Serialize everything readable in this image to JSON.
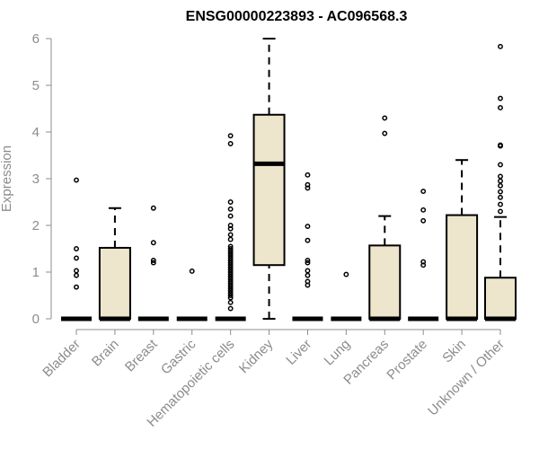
{
  "chart_data": {
    "type": "boxplot",
    "title": "ENSG00000223893 - AC096568.3",
    "xlabel": "",
    "ylabel": "Expression",
    "ylim": [
      0,
      6
    ],
    "yticks": [
      0,
      1,
      2,
      3,
      4,
      5,
      6
    ],
    "grid": false,
    "box_color": "#ede6cc",
    "line_color": "#000000",
    "axis_color": "#8c8c8c",
    "categories": [
      "Bladder",
      "Brain",
      "Breast",
      "Gastric",
      "Hematopoietic cells",
      "Kidney",
      "Liver",
      "Lung",
      "Pancreas",
      "Prostate",
      "Skin",
      "Unknown / Other"
    ],
    "boxes": [
      {
        "q1": 0,
        "median": 0,
        "q3": 0,
        "whisker_low": 0,
        "whisker_high": 0,
        "outliers": [
          0.68,
          0.93,
          1.03,
          1.3,
          1.5,
          2.97
        ]
      },
      {
        "q1": 0,
        "median": 0,
        "q3": 1.52,
        "whisker_low": 0,
        "whisker_high": 2.37,
        "outliers": []
      },
      {
        "q1": 0,
        "median": 0,
        "q3": 0,
        "whisker_low": 0,
        "whisker_high": 0,
        "outliers": [
          1.2,
          1.25,
          1.63,
          2.37
        ]
      },
      {
        "q1": 0,
        "median": 0,
        "q3": 0,
        "whisker_low": 0,
        "whisker_high": 0,
        "outliers": [
          1.02
        ]
      },
      {
        "q1": 0,
        "median": 0,
        "q3": 0,
        "whisker_low": 0,
        "whisker_high": 0,
        "outliers": [
          0.22,
          0.35,
          0.45,
          0.5,
          0.55,
          0.6,
          0.65,
          0.7,
          0.75,
          0.8,
          0.85,
          0.9,
          0.95,
          1.0,
          1.05,
          1.1,
          1.15,
          1.2,
          1.25,
          1.3,
          1.35,
          1.4,
          1.45,
          1.5,
          1.55,
          1.7,
          1.8,
          1.93,
          2.0,
          2.2,
          2.35,
          2.5,
          3.75,
          3.92
        ]
      },
      {
        "q1": 1.15,
        "median": 3.32,
        "q3": 4.37,
        "whisker_low": 0,
        "whisker_high": 6.0,
        "outliers": []
      },
      {
        "q1": 0,
        "median": 0,
        "q3": 0,
        "whisker_low": 0,
        "whisker_high": 0,
        "outliers": [
          0.72,
          0.8,
          0.93,
          1.03,
          1.2,
          1.25,
          1.68,
          1.98,
          2.8,
          2.87,
          3.08
        ]
      },
      {
        "q1": 0,
        "median": 0,
        "q3": 0,
        "whisker_low": 0,
        "whisker_high": 0,
        "outliers": [
          0.95
        ]
      },
      {
        "q1": 0,
        "median": 0,
        "q3": 1.57,
        "whisker_low": 0,
        "whisker_high": 2.2,
        "outliers": [
          3.97,
          4.3
        ]
      },
      {
        "q1": 0,
        "median": 0,
        "q3": 0,
        "whisker_low": 0,
        "whisker_high": 0,
        "outliers": [
          1.15,
          1.22,
          2.1,
          2.33,
          2.73
        ]
      },
      {
        "q1": 0,
        "median": 0,
        "q3": 2.22,
        "whisker_low": 0,
        "whisker_high": 3.4,
        "outliers": []
      },
      {
        "q1": 0,
        "median": 0,
        "q3": 0.88,
        "whisker_low": 0,
        "whisker_high": 2.18,
        "outliers": [
          2.3,
          2.45,
          2.6,
          2.72,
          2.85,
          2.95,
          3.05,
          3.3,
          3.7,
          3.72,
          4.52,
          4.72,
          5.83
        ]
      }
    ]
  }
}
